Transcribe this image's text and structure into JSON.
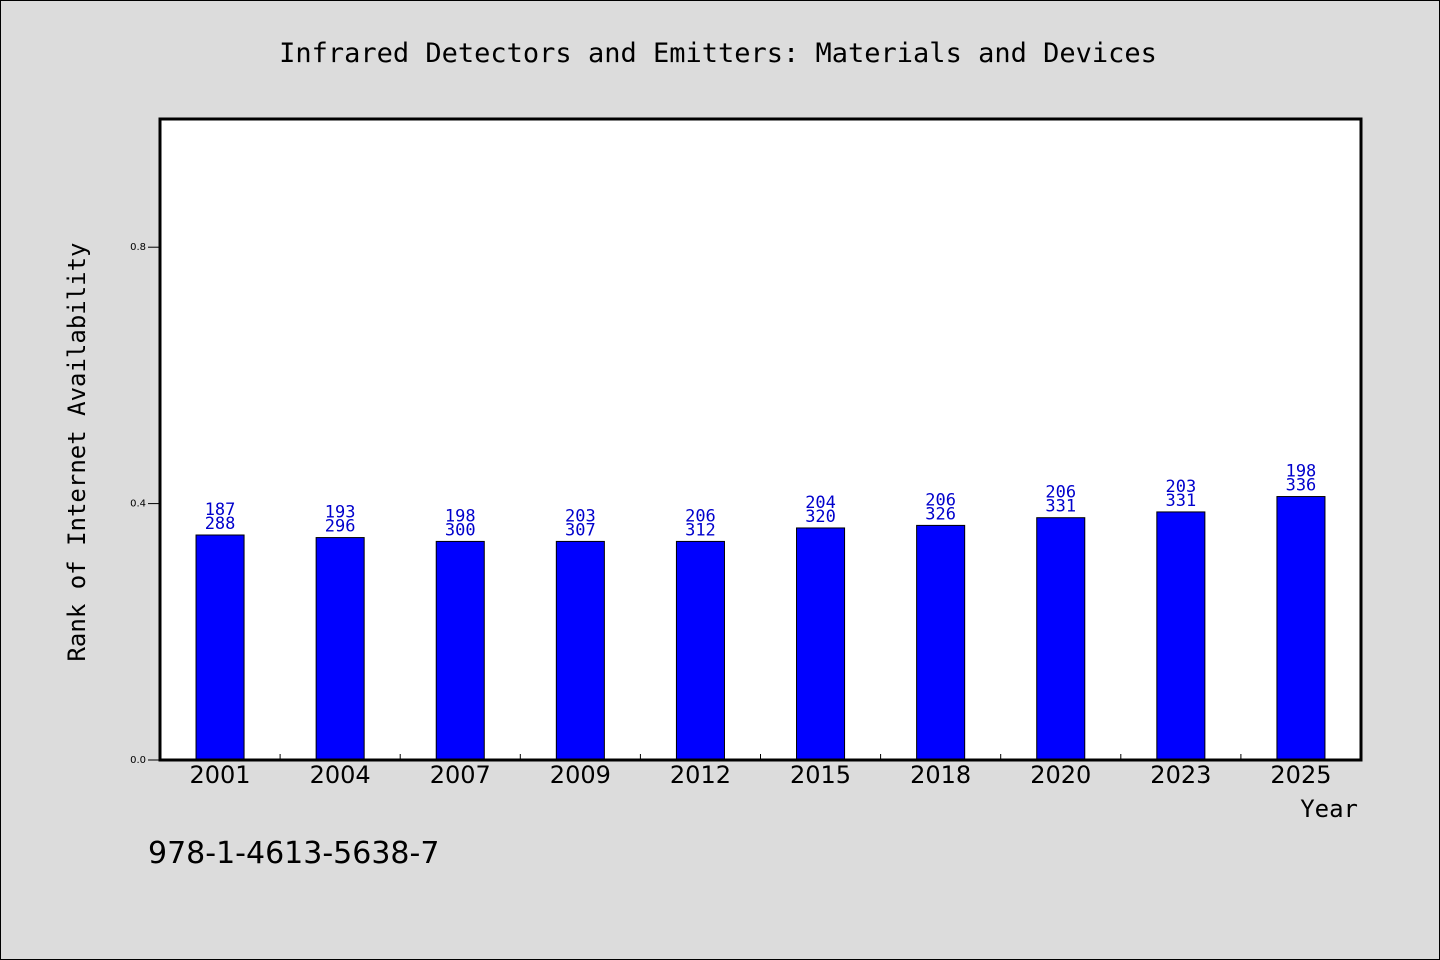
{
  "chart_data": {
    "type": "bar",
    "title": "Infrared Detectors and Emitters: Materials and Devices",
    "xlabel": "Year",
    "ylabel": "Rank of Internet Availability",
    "categories": [
      "2001",
      "2004",
      "2007",
      "2009",
      "2012",
      "2015",
      "2018",
      "2020",
      "2023",
      "2025"
    ],
    "values": [
      0.351,
      0.347,
      0.341,
      0.341,
      0.341,
      0.362,
      0.366,
      0.378,
      0.387,
      0.411
    ],
    "bar_labels_top": [
      "187",
      "193",
      "198",
      "203",
      "206",
      "204",
      "206",
      "206",
      "203",
      "198"
    ],
    "bar_labels_bottom": [
      "288",
      "296",
      "300",
      "307",
      "312",
      "320",
      "326",
      "331",
      "331",
      "336"
    ],
    "yticks": [
      "0.0",
      "0.4",
      "0.8"
    ],
    "ylim": [
      0,
      1.0
    ],
    "grid": false,
    "colors": {
      "bar": "#0000ff",
      "bar_label": "#0000cc",
      "plot_bg": "#ffffff",
      "page_bg": "#dcdcdc"
    }
  },
  "footer": {
    "isbn": "978-1-4613-5638-7"
  }
}
